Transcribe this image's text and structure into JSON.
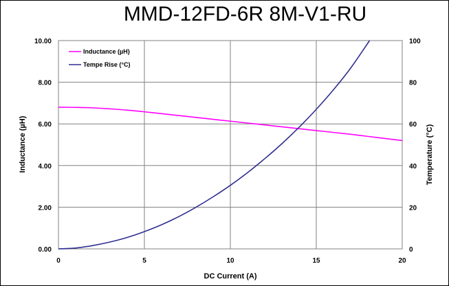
{
  "chart_data": {
    "type": "line",
    "title": "MMD-12FD-6R 8M-V1-RU",
    "xlabel": "DC Current (A)",
    "ylabel": "Inductance (µH)",
    "y2label": "Temperature (°C)",
    "xlim": [
      0,
      20
    ],
    "ylim": [
      0,
      10
    ],
    "y2lim": [
      0,
      100
    ],
    "x_ticks": [
      "0",
      "5",
      "10",
      "15",
      "20"
    ],
    "y_ticks": [
      "0.00",
      "2.00",
      "4.00",
      "6.00",
      "8.00",
      "10.00"
    ],
    "y2_ticks": [
      "0",
      "20",
      "40",
      "60",
      "80",
      "100"
    ],
    "grid": true,
    "legend_position": "top-left",
    "series": [
      {
        "name": "Inductance (µH)",
        "axis": "left",
        "color": "#ff00ff",
        "x": [
          0,
          1,
          2,
          3,
          4,
          5,
          6,
          7,
          8,
          9,
          10,
          11,
          12,
          13,
          14,
          15,
          16,
          17,
          18,
          19,
          20
        ],
        "values": [
          6.8,
          6.79,
          6.77,
          6.72,
          6.66,
          6.58,
          6.49,
          6.4,
          6.31,
          6.22,
          6.13,
          6.04,
          5.95,
          5.86,
          5.77,
          5.68,
          5.59,
          5.5,
          5.4,
          5.3,
          5.2
        ]
      },
      {
        "name": "Tempe Rise (°C)",
        "axis": "right",
        "color": "#2e2e8f",
        "x": [
          0,
          1,
          2,
          3,
          4,
          5,
          6,
          7,
          8,
          9,
          10,
          11,
          12,
          13,
          14,
          15,
          16,
          17,
          18.1
        ],
        "values": [
          0,
          0.4,
          1.6,
          3.3,
          5.5,
          8.3,
          11.6,
          15.5,
          20.0,
          25.0,
          30.5,
          36.6,
          43.3,
          50.5,
          58.4,
          67.0,
          76.4,
          86.8,
          100
        ]
      }
    ]
  }
}
